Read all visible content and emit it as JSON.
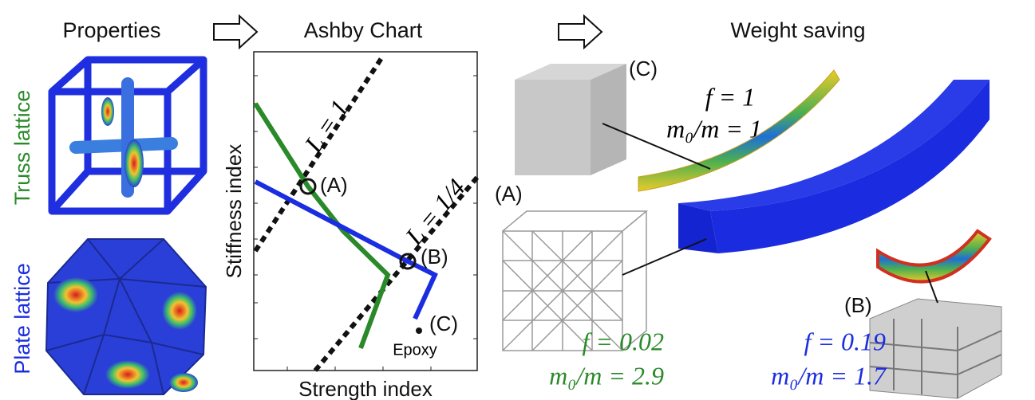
{
  "header": {
    "steps": [
      "Properties",
      "Ashby Chart",
      "Weight saving"
    ]
  },
  "properties": {
    "truss_label": "Truss lattice",
    "plate_label": "Plate lattice"
  },
  "ashby": {
    "y_label": "Stiffness index",
    "x_label": "Strength index",
    "line_labels": [
      "L = 1",
      "L = 1/4"
    ],
    "points": [
      "(A)",
      "(B)",
      "(C)"
    ],
    "material": "Epoxy"
  },
  "weight_saving": {
    "solid": {
      "label": "(C)",
      "f": "f = 1",
      "ratio": "m₀/m = 1"
    },
    "truss": {
      "label": "(A)",
      "f": "f = 0.02",
      "ratio": "m₀/m = 2.9"
    },
    "plate": {
      "label": "(B)",
      "f": "f = 0.19",
      "ratio": "m₀/m = 1.7"
    }
  }
}
